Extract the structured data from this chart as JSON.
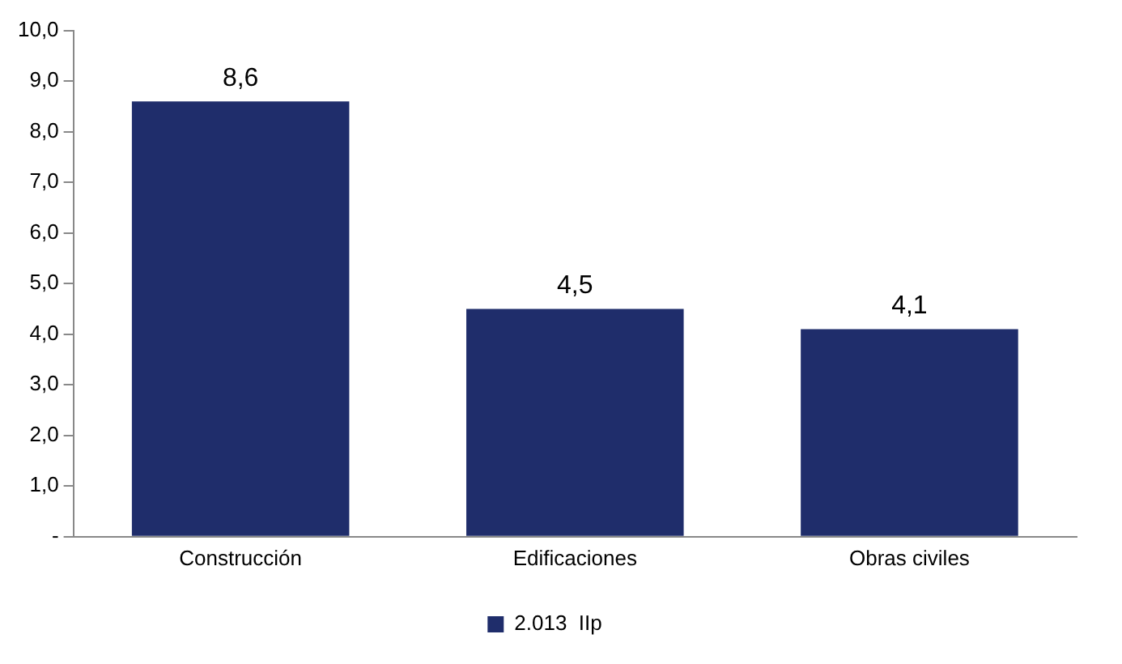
{
  "chart_data": {
    "type": "bar",
    "categories": [
      "Construcción",
      "Edificaciones",
      "Obras civiles"
    ],
    "series": [
      {
        "name": "2.013  IIp",
        "color": "#1f2d6b",
        "values": [
          8.6,
          4.5,
          4.1
        ]
      }
    ],
    "value_labels": [
      "8,6",
      "4,5",
      "4,1"
    ],
    "ylim": [
      0,
      10
    ],
    "yticks": [
      {
        "value": 0,
        "label": "-"
      },
      {
        "value": 1,
        "label": "1,0"
      },
      {
        "value": 2,
        "label": "2,0"
      },
      {
        "value": 3,
        "label": "3,0"
      },
      {
        "value": 4,
        "label": "4,0"
      },
      {
        "value": 5,
        "label": "5,0"
      },
      {
        "value": 6,
        "label": "6,0"
      },
      {
        "value": 7,
        "label": "7,0"
      },
      {
        "value": 8,
        "label": "8,0"
      },
      {
        "value": 9,
        "label": "9,0"
      },
      {
        "value": 10,
        "label": "10,0"
      }
    ],
    "grid": false,
    "legend": "bottom"
  }
}
